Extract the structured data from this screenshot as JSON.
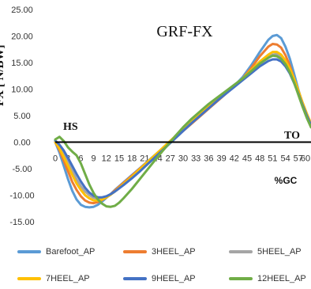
{
  "chart_data": {
    "type": "line",
    "title": "GRF-FX",
    "ylabel": "FX  [ N/BW]",
    "xlabel": "%GC",
    "ylim": [
      -15,
      25
    ],
    "xlim": [
      0,
      60
    ],
    "yticks": [
      "25.00",
      "20.00",
      "15.00",
      "10.00",
      "5.00",
      "0.00",
      "-5.00",
      "-10.00",
      "-15.00"
    ],
    "xticks": [
      "0",
      "3",
      "6",
      "9",
      "12",
      "15",
      "18",
      "21",
      "24",
      "27",
      "30",
      "33",
      "36",
      "39",
      "42",
      "45",
      "48",
      "51",
      "54",
      "57",
      "60"
    ],
    "annotations": {
      "hs": "HS",
      "to": "TO"
    },
    "grid": false,
    "legend_position": "bottom",
    "series": [
      {
        "name": "Barefoot_AP",
        "color": "#5b9bd5",
        "x": [
          0,
          1,
          2,
          3,
          4,
          5,
          6,
          7,
          8,
          9,
          10,
          11,
          12,
          13,
          14,
          15,
          16,
          18,
          20,
          22,
          24,
          26,
          28,
          30,
          32,
          34,
          36,
          38,
          40,
          42,
          44,
          46,
          48,
          50,
          51,
          52,
          53,
          54,
          55,
          56,
          57,
          58,
          59,
          60
        ],
        "y": [
          0,
          -2,
          -4.5,
          -7,
          -9.2,
          -10.8,
          -11.8,
          -12.2,
          -12.3,
          -12.2,
          -11.8,
          -11.2,
          -10.5,
          -9.8,
          -9.0,
          -8.3,
          -7.6,
          -6.2,
          -4.8,
          -3.4,
          -2.0,
          -0.6,
          0.8,
          2.2,
          3.6,
          5.0,
          6.4,
          7.8,
          9.2,
          10.6,
          12.3,
          14.5,
          17.0,
          19.3,
          20.0,
          20.2,
          19.6,
          18.0,
          15.8,
          13.0,
          10.0,
          7.3,
          5.0,
          3.0
        ]
      },
      {
        "name": "3HEEL_AP",
        "color": "#ed7d31",
        "x": [
          0,
          1,
          2,
          3,
          4,
          5,
          6,
          7,
          8,
          9,
          10,
          11,
          12,
          13,
          14,
          15,
          16,
          18,
          20,
          22,
          24,
          26,
          28,
          30,
          32,
          34,
          36,
          38,
          40,
          42,
          44,
          46,
          48,
          50,
          51,
          52,
          53,
          54,
          55,
          56,
          57,
          58,
          59,
          60
        ],
        "y": [
          0,
          -1.5,
          -3.5,
          -5.5,
          -7.5,
          -9.0,
          -10.2,
          -11.0,
          -11.4,
          -11.5,
          -11.3,
          -10.9,
          -10.4,
          -9.8,
          -9.1,
          -8.4,
          -7.7,
          -6.3,
          -4.9,
          -3.5,
          -2.1,
          -0.7,
          0.7,
          2.1,
          3.5,
          4.9,
          6.3,
          7.7,
          9.1,
          10.5,
          12.0,
          14.0,
          16.2,
          18.0,
          18.5,
          18.4,
          17.8,
          16.4,
          14.5,
          12.0,
          9.5,
          7.0,
          5.0,
          3.2
        ]
      },
      {
        "name": "5HEEL_AP",
        "color": "#a5a5a5",
        "x": [
          0,
          1,
          2,
          3,
          4,
          5,
          6,
          7,
          8,
          9,
          10,
          11,
          12,
          13,
          14,
          15,
          16,
          18,
          20,
          22,
          24,
          26,
          28,
          30,
          32,
          34,
          36,
          38,
          40,
          42,
          44,
          46,
          48,
          50,
          51,
          52,
          53,
          54,
          55,
          56,
          57,
          58,
          59,
          60
        ],
        "y": [
          0.2,
          -0.8,
          -2.2,
          -3.8,
          -5.4,
          -7.0,
          -8.3,
          -9.3,
          -10.0,
          -10.5,
          -10.7,
          -10.7,
          -10.4,
          -9.9,
          -9.3,
          -8.7,
          -8.0,
          -6.6,
          -5.1,
          -3.6,
          -2.1,
          -0.6,
          0.9,
          2.4,
          3.8,
          5.2,
          6.6,
          8.0,
          9.3,
          10.6,
          11.9,
          13.3,
          14.8,
          16.0,
          16.5,
          16.6,
          16.2,
          15.2,
          13.8,
          12.0,
          9.8,
          7.5,
          5.4,
          3.5
        ]
      },
      {
        "name": "7HEEL_AP",
        "color": "#ffc000",
        "x": [
          0,
          1,
          2,
          3,
          4,
          5,
          6,
          7,
          8,
          9,
          10,
          11,
          12,
          13,
          14,
          15,
          16,
          18,
          20,
          22,
          24,
          26,
          28,
          30,
          32,
          34,
          36,
          38,
          40,
          42,
          44,
          46,
          48,
          50,
          51,
          52,
          53,
          54,
          55,
          56,
          57,
          58,
          59,
          60
        ],
        "y": [
          0,
          -1.2,
          -2.8,
          -4.5,
          -6.2,
          -7.8,
          -9.0,
          -10.0,
          -10.6,
          -11.0,
          -11.0,
          -10.8,
          -10.4,
          -9.9,
          -9.3,
          -8.6,
          -7.9,
          -6.5,
          -5.0,
          -3.5,
          -2.0,
          -0.5,
          1.0,
          2.5,
          3.9,
          5.3,
          6.7,
          8.1,
          9.4,
          10.7,
          12.0,
          13.6,
          15.2,
          16.5,
          17.0,
          17.0,
          16.5,
          15.4,
          13.9,
          12.0,
          9.8,
          7.5,
          5.4,
          3.5
        ]
      },
      {
        "name": "9HEEL_AP",
        "color": "#4472c4",
        "x": [
          0,
          1,
          2,
          3,
          4,
          5,
          6,
          7,
          8,
          9,
          10,
          11,
          12,
          13,
          14,
          15,
          16,
          18,
          20,
          22,
          24,
          26,
          28,
          30,
          32,
          34,
          36,
          38,
          40,
          42,
          44,
          46,
          48,
          50,
          51,
          52,
          53,
          54,
          55,
          56,
          57,
          58,
          59,
          60
        ],
        "y": [
          0.3,
          -0.5,
          -1.6,
          -3.0,
          -4.5,
          -6.0,
          -7.4,
          -8.6,
          -9.5,
          -10.1,
          -10.4,
          -10.4,
          -10.2,
          -9.8,
          -9.3,
          -8.7,
          -8.1,
          -6.8,
          -5.4,
          -3.9,
          -2.4,
          -0.9,
          0.6,
          2.1,
          3.6,
          5.0,
          6.4,
          7.8,
          9.1,
          10.4,
          11.7,
          13.0,
          14.3,
          15.3,
          15.6,
          15.6,
          15.2,
          14.3,
          13.0,
          11.2,
          9.2,
          7.0,
          5.0,
          3.2
        ]
      },
      {
        "name": "12HEEL_AP",
        "color": "#70ad47",
        "x": [
          0,
          1,
          2,
          3,
          4,
          5,
          6,
          7,
          8,
          9,
          10,
          11,
          12,
          13,
          14,
          15,
          16,
          18,
          20,
          22,
          24,
          26,
          28,
          30,
          32,
          34,
          36,
          38,
          40,
          42,
          44,
          46,
          48,
          50,
          51,
          52,
          53,
          54,
          55,
          56,
          57,
          58,
          59,
          60
        ],
        "y": [
          0.5,
          1.0,
          0.2,
          -1.0,
          -1.8,
          -2.5,
          -4.0,
          -6.0,
          -8.0,
          -9.6,
          -10.8,
          -11.6,
          -12.1,
          -12.2,
          -12.0,
          -11.4,
          -10.6,
          -8.8,
          -6.8,
          -4.8,
          -2.8,
          -0.9,
          1.0,
          2.8,
          4.4,
          5.8,
          7.2,
          8.4,
          9.6,
          10.8,
          12.0,
          13.4,
          14.8,
          15.9,
          16.3,
          16.2,
          15.7,
          14.7,
          13.2,
          11.3,
          9.0,
          6.7,
          4.6,
          2.8
        ]
      }
    ]
  }
}
